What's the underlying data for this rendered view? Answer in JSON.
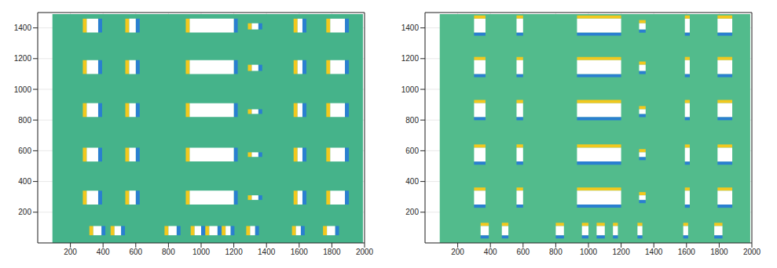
{
  "chart_data": [
    {
      "type": "facade",
      "grid": true,
      "color": "#45b38a",
      "xlim": [
        0,
        2000
      ],
      "ylim": [
        0,
        1500
      ],
      "xticks": [
        200,
        400,
        600,
        800,
        1000,
        1200,
        1400,
        1600,
        1800,
        2000
      ],
      "yticks": [
        200,
        400,
        600,
        800,
        1000,
        1200,
        1400
      ],
      "facade": [
        90,
        1990,
        0,
        1490
      ],
      "windows": [
        [
          300,
          370,
          250,
          340
        ],
        [
          560,
          600,
          250,
          340
        ],
        [
          930,
          1200,
          250,
          340
        ],
        [
          1310,
          1350,
          280,
          310
        ],
        [
          1590,
          1620,
          250,
          340
        ],
        [
          1790,
          1880,
          250,
          340
        ],
        [
          300,
          370,
          530,
          620
        ],
        [
          560,
          600,
          530,
          620
        ],
        [
          930,
          1200,
          530,
          620
        ],
        [
          1310,
          1350,
          560,
          590
        ],
        [
          1590,
          1620,
          530,
          620
        ],
        [
          1790,
          1880,
          530,
          620
        ],
        [
          300,
          370,
          820,
          910
        ],
        [
          560,
          600,
          820,
          910
        ],
        [
          930,
          1200,
          820,
          910
        ],
        [
          1310,
          1350,
          840,
          870
        ],
        [
          1590,
          1620,
          820,
          910
        ],
        [
          1790,
          1880,
          820,
          910
        ],
        [
          300,
          370,
          1100,
          1190
        ],
        [
          560,
          600,
          1100,
          1190
        ],
        [
          930,
          1200,
          1100,
          1190
        ],
        [
          1310,
          1350,
          1120,
          1160
        ],
        [
          1590,
          1620,
          1100,
          1190
        ],
        [
          1790,
          1880,
          1100,
          1190
        ],
        [
          300,
          370,
          1370,
          1460
        ],
        [
          560,
          600,
          1370,
          1460
        ],
        [
          930,
          1200,
          1370,
          1460
        ],
        [
          1310,
          1350,
          1390,
          1430
        ],
        [
          1590,
          1620,
          1370,
          1460
        ],
        [
          1790,
          1880,
          1370,
          1460
        ],
        [
          340,
          390,
          50,
          110
        ],
        [
          470,
          510,
          50,
          110
        ],
        [
          800,
          850,
          50,
          110
        ],
        [
          960,
          1000,
          50,
          110
        ],
        [
          1050,
          1100,
          50,
          110
        ],
        [
          1150,
          1180,
          50,
          110
        ],
        [
          1300,
          1330,
          50,
          110
        ],
        [
          1580,
          1610,
          50,
          110
        ],
        [
          1770,
          1820,
          50,
          110
        ]
      ]
    },
    {
      "type": "facade",
      "grid": true,
      "color": "#52bb8c",
      "xlim": [
        0,
        2000
      ],
      "ylim": [
        0,
        1500
      ],
      "xticks": [
        200,
        400,
        600,
        800,
        1000,
        1200,
        1400,
        1600,
        1800,
        2000
      ],
      "yticks": [
        200,
        400,
        600,
        800,
        1000,
        1200,
        1400
      ],
      "facade": [
        90,
        1990,
        0,
        1490
      ],
      "windows": [
        [
          300,
          370,
          250,
          340
        ],
        [
          560,
          600,
          250,
          340
        ],
        [
          930,
          1200,
          250,
          340
        ],
        [
          1310,
          1350,
          280,
          310
        ],
        [
          1590,
          1620,
          250,
          340
        ],
        [
          1790,
          1880,
          250,
          340
        ],
        [
          300,
          370,
          530,
          620
        ],
        [
          560,
          600,
          530,
          620
        ],
        [
          930,
          1200,
          530,
          620
        ],
        [
          1310,
          1350,
          560,
          590
        ],
        [
          1590,
          1620,
          530,
          620
        ],
        [
          1790,
          1880,
          530,
          620
        ],
        [
          300,
          370,
          820,
          910
        ],
        [
          560,
          600,
          820,
          910
        ],
        [
          930,
          1200,
          820,
          910
        ],
        [
          1310,
          1350,
          840,
          870
        ],
        [
          1590,
          1620,
          820,
          910
        ],
        [
          1790,
          1880,
          820,
          910
        ],
        [
          300,
          370,
          1100,
          1190
        ],
        [
          560,
          600,
          1100,
          1190
        ],
        [
          930,
          1200,
          1100,
          1190
        ],
        [
          1310,
          1350,
          1120,
          1160
        ],
        [
          1590,
          1620,
          1100,
          1190
        ],
        [
          1790,
          1880,
          1100,
          1190
        ],
        [
          300,
          370,
          1370,
          1460
        ],
        [
          560,
          600,
          1370,
          1460
        ],
        [
          930,
          1200,
          1370,
          1460
        ],
        [
          1310,
          1350,
          1390,
          1430
        ],
        [
          1590,
          1620,
          1370,
          1460
        ],
        [
          1790,
          1880,
          1370,
          1460
        ],
        [
          340,
          390,
          50,
          110
        ],
        [
          470,
          510,
          50,
          110
        ],
        [
          800,
          850,
          50,
          110
        ],
        [
          960,
          1000,
          50,
          110
        ],
        [
          1050,
          1100,
          50,
          110
        ],
        [
          1150,
          1180,
          50,
          110
        ],
        [
          1300,
          1330,
          50,
          110
        ],
        [
          1580,
          1610,
          50,
          110
        ],
        [
          1770,
          1820,
          50,
          110
        ]
      ]
    }
  ]
}
